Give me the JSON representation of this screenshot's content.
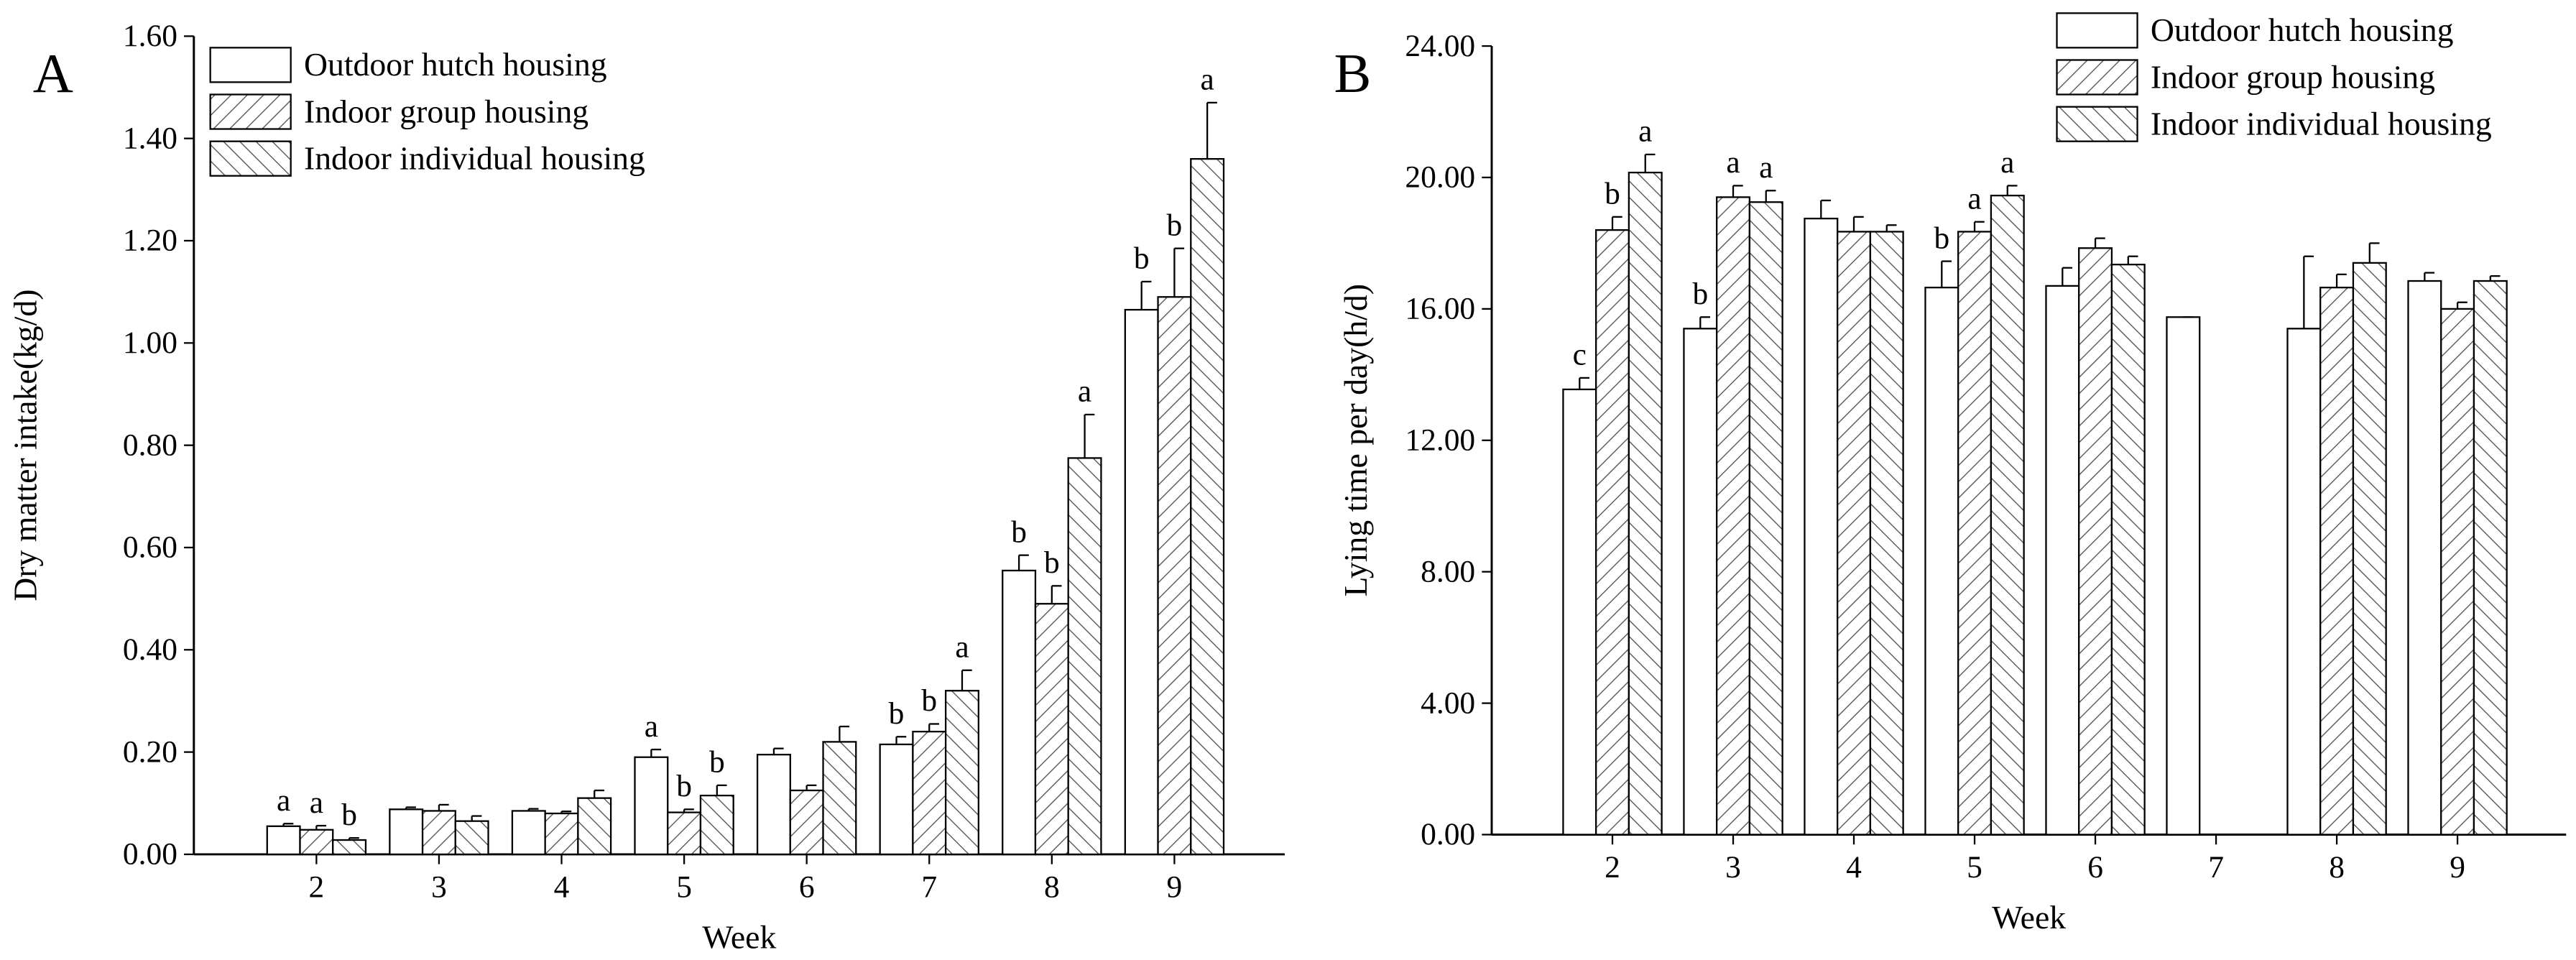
{
  "chart_data": [
    {
      "type": "bar",
      "panel": "A",
      "y_label": "Dry matter intake(kg/d)",
      "x_label": "Week",
      "categories": [
        "2",
        "3",
        "4",
        "5",
        "6",
        "7",
        "8",
        "9"
      ],
      "ylim": [
        0,
        1.6
      ],
      "yticks": [
        {
          "value": 0,
          "label": "0.00"
        },
        {
          "value": 0.2,
          "label": "0.20"
        },
        {
          "value": 0.4,
          "label": "0.40"
        },
        {
          "value": 0.6,
          "label": "0.60"
        },
        {
          "value": 0.8,
          "label": "0.80"
        },
        {
          "value": 1.0,
          "label": "1.00"
        },
        {
          "value": 1.2,
          "label": "1.20"
        },
        {
          "value": 1.4,
          "label": "1.40"
        },
        {
          "value": 1.6,
          "label": "1.60"
        }
      ],
      "legend": "upper left",
      "series": [
        {
          "name": "Outdoor hutch housing",
          "color": "#000000",
          "hatch": "none",
          "values": [
            0.055,
            0.088,
            0.085,
            0.19,
            0.195,
            0.215,
            0.555,
            1.065
          ],
          "errors": [
            0.005,
            0.004,
            0.004,
            0.015,
            0.012,
            0.015,
            0.03,
            0.055
          ],
          "annotations": [
            "a",
            null,
            null,
            "a",
            null,
            "b",
            "b",
            "b"
          ]
        },
        {
          "name": "Indoor group housing",
          "color": "#000000",
          "hatch": "forward",
          "values": [
            0.048,
            0.085,
            0.08,
            0.082,
            0.125,
            0.24,
            0.49,
            1.09
          ],
          "errors": [
            0.008,
            0.012,
            0.004,
            0.006,
            0.01,
            0.015,
            0.035,
            0.095
          ],
          "annotations": [
            "a",
            null,
            null,
            "b",
            null,
            "b",
            "b",
            "b"
          ]
        },
        {
          "name": "Indoor individual housing",
          "color": "#000000",
          "hatch": "backward",
          "values": [
            0.028,
            0.065,
            0.11,
            0.115,
            0.22,
            0.32,
            0.775,
            1.36
          ],
          "errors": [
            0.004,
            0.01,
            0.015,
            0.02,
            0.03,
            0.04,
            0.085,
            0.11
          ],
          "annotations": [
            "b",
            null,
            null,
            "b",
            null,
            "a",
            "a",
            "a"
          ]
        }
      ]
    },
    {
      "type": "bar",
      "panel": "B",
      "y_label": "Lying time per day(h/d)",
      "x_label": "Week",
      "categories": [
        "2",
        "3",
        "4",
        "5",
        "6",
        "7",
        "8",
        "9"
      ],
      "ylim": [
        0,
        24
      ],
      "yticks": [
        {
          "value": 0,
          "label": "0.00"
        },
        {
          "value": 4,
          "label": "4.00"
        },
        {
          "value": 8,
          "label": "8.00"
        },
        {
          "value": 12,
          "label": "12.00"
        },
        {
          "value": 16,
          "label": "16.00"
        },
        {
          "value": 20,
          "label": "20.00"
        },
        {
          "value": 24,
          "label": "24.00"
        }
      ],
      "legend": "upper right",
      "series": [
        {
          "name": "Outdoor hutch housing",
          "color": "#000000",
          "hatch": "none",
          "values": [
            13.55,
            15.4,
            18.75,
            16.65,
            16.7,
            15.75,
            15.4,
            16.85
          ],
          "errors": [
            0.35,
            0.35,
            0.55,
            0.8,
            0.55,
            0,
            2.2,
            0.25
          ],
          "annotations": [
            "c",
            "b",
            null,
            "b",
            null,
            null,
            null,
            null
          ]
        },
        {
          "name": "Indoor group housing",
          "color": "#000000",
          "hatch": "forward",
          "values": [
            18.4,
            19.4,
            18.35,
            18.35,
            17.85,
            null,
            16.65,
            16.0
          ],
          "errors": [
            0.4,
            0.35,
            0.45,
            0.3,
            0.3,
            null,
            0.4,
            0.2
          ],
          "annotations": [
            "b",
            "a",
            null,
            "a",
            null,
            null,
            null,
            null
          ]
        },
        {
          "name": "Indoor individual housing",
          "color": "#000000",
          "hatch": "backward",
          "values": [
            20.15,
            19.25,
            18.35,
            19.45,
            17.35,
            null,
            17.4,
            16.85
          ],
          "errors": [
            0.55,
            0.35,
            0.2,
            0.3,
            0.25,
            null,
            0.6,
            0.15
          ],
          "annotations": [
            "a",
            "a",
            null,
            "a",
            null,
            null,
            null,
            null
          ]
        }
      ]
    }
  ]
}
